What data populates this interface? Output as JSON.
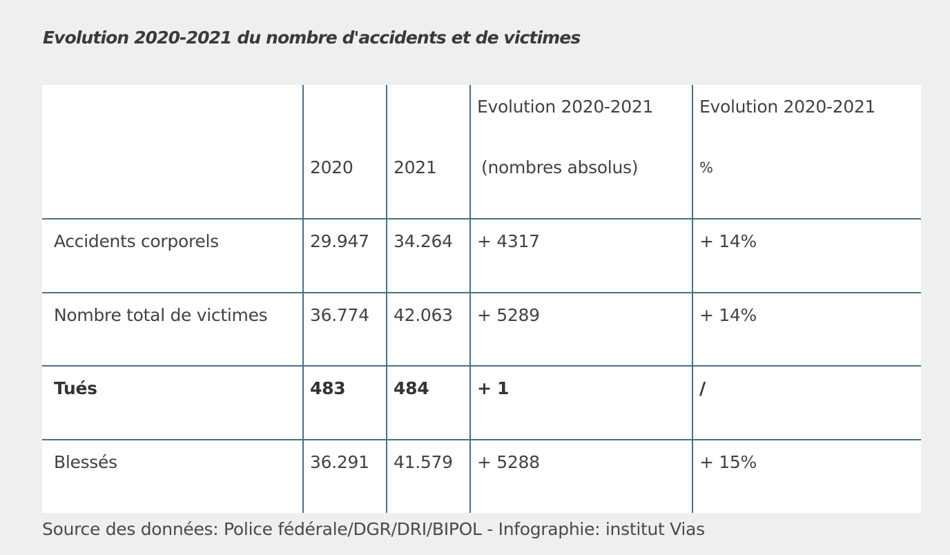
{
  "title": "Evolution 2020-2021 du nombre d'accidents et de victimes",
  "table": {
    "header": {
      "col0": "",
      "col1": "2020",
      "col2": "2021",
      "col3_line1": "Evolution 2020-2021",
      "col3_line2": "(nombres absolus)",
      "col4_line1": "Evolution 2020-2021",
      "col4_line2": "%"
    },
    "rows": [
      {
        "label": "Accidents corporels",
        "v2020": "29.947",
        "v2021": "34.264",
        "abs": "+ 4317",
        "pct": "+ 14%",
        "bold": false
      },
      {
        "label": "Nombre total de victimes",
        "v2020": "36.774",
        "v2021": "42.063",
        "abs": "+ 5289",
        "pct": "+ 14%",
        "bold": false
      },
      {
        "label": "Tués",
        "v2020": "483",
        "v2021": "484",
        "abs": "+ 1",
        "pct": "/",
        "bold": true
      },
      {
        "label": "Blessés",
        "v2020": "36.291",
        "v2021": "41.579",
        "abs": "+ 5288",
        "pct": "+ 15%",
        "bold": false
      }
    ]
  },
  "source": "Source des données: Police fédérale/DGR/DRI/BIPOL - Infographie: institut Vias",
  "colors": {
    "background": "#efefef",
    "table_background": "#ffffff",
    "border": "#4a6e82",
    "text": "#424242"
  }
}
